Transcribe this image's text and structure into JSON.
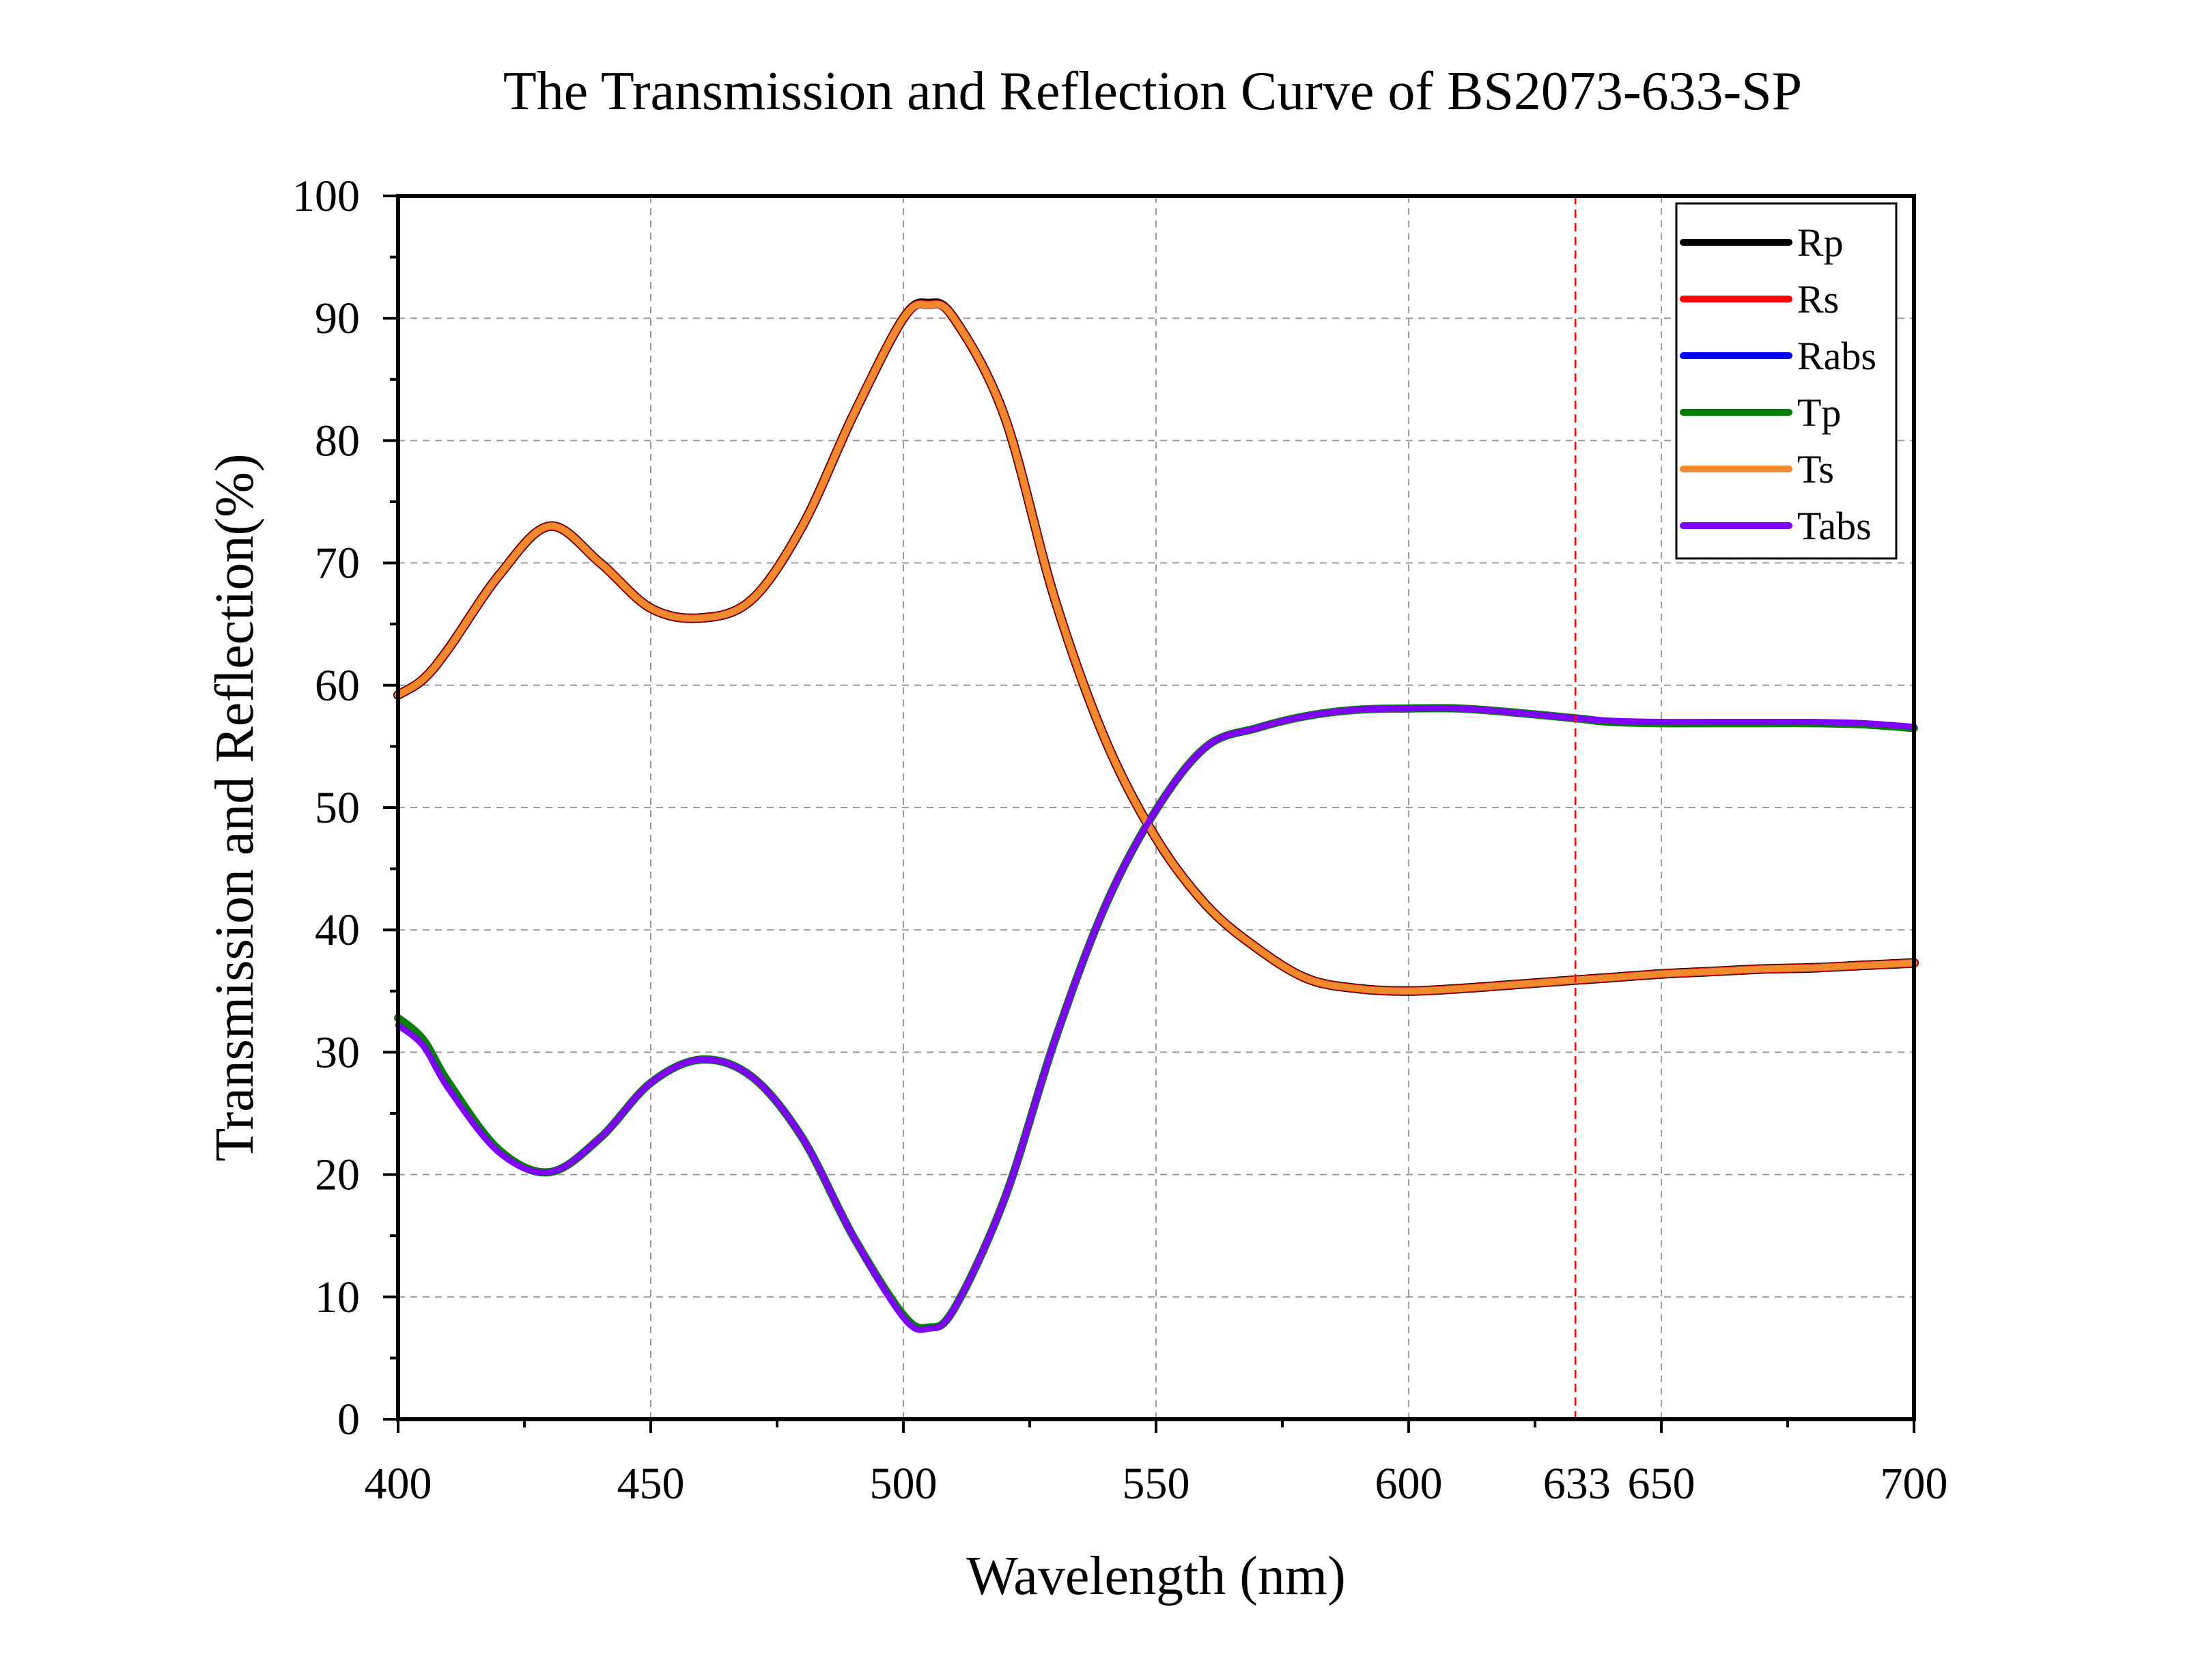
{
  "chart_data": {
    "type": "line",
    "title": "The Transmission and Reflection Curve of BS2073-633-SP",
    "xlabel": "Wavelength (nm)",
    "ylabel": "Transmission and Reflection(%)",
    "xlim": [
      400,
      700
    ],
    "ylim": [
      0,
      100
    ],
    "xticks": [
      400,
      450,
      500,
      550,
      600,
      650,
      700
    ],
    "yticks": [
      0,
      10,
      20,
      30,
      40,
      50,
      60,
      70,
      80,
      90,
      100
    ],
    "grid": true,
    "legend_position": "top-right",
    "marker": {
      "x": 633,
      "label": "633",
      "color": "#ff0000"
    },
    "series": [
      {
        "name": "Rp",
        "color": "#000000",
        "x": [
          400,
          405,
          410,
          420,
          430,
          440,
          450,
          460,
          470,
          480,
          490,
          500,
          505,
          510,
          520,
          530,
          540,
          550,
          560,
          570,
          580,
          590,
          600,
          610,
          620,
          633,
          640,
          650,
          660,
          670,
          680,
          690,
          700
        ],
        "y": [
          59.2,
          60.5,
          63,
          69,
          73,
          70,
          66.3,
          65.5,
          67,
          73,
          82,
          90,
          91.2,
          90,
          82,
          67,
          55.5,
          47.5,
          42,
          38.5,
          36,
          35.2,
          35,
          35.2,
          35.5,
          35.9,
          36.1,
          36.4,
          36.6,
          36.8,
          36.9,
          37.1,
          37.3
        ]
      },
      {
        "name": "Rs",
        "color": "#ff0000",
        "x": [
          400,
          405,
          410,
          420,
          430,
          440,
          450,
          460,
          470,
          480,
          490,
          500,
          505,
          510,
          520,
          530,
          540,
          550,
          560,
          570,
          580,
          590,
          600,
          610,
          620,
          633,
          640,
          650,
          660,
          670,
          680,
          690,
          700
        ],
        "y": [
          59.2,
          60.5,
          63,
          69,
          73,
          70,
          66.3,
          65.5,
          67,
          73,
          82,
          90,
          91.1,
          90,
          82,
          67,
          55.5,
          47.5,
          42,
          38.5,
          36,
          35.2,
          35,
          35.2,
          35.5,
          35.9,
          36.1,
          36.4,
          36.6,
          36.8,
          36.9,
          37.1,
          37.3
        ]
      },
      {
        "name": "Rabs",
        "color": "#0000ff",
        "x": [
          400,
          405,
          410,
          420,
          430,
          440,
          450,
          460,
          470,
          480,
          490,
          500,
          505,
          510,
          520,
          530,
          540,
          550,
          560,
          570,
          580,
          590,
          600,
          610,
          620,
          633,
          640,
          650,
          660,
          670,
          680,
          690,
          700
        ],
        "y": [
          59.2,
          60.5,
          63,
          69,
          73,
          70,
          66.3,
          65.5,
          67,
          73,
          82,
          90,
          91.1,
          90,
          82,
          67,
          55.5,
          47.5,
          42,
          38.5,
          36,
          35.2,
          35,
          35.2,
          35.5,
          35.9,
          36.1,
          36.4,
          36.6,
          36.8,
          36.9,
          37.1,
          37.3
        ]
      },
      {
        "name": "Tp",
        "color": "#008000",
        "x": [
          400,
          405,
          410,
          420,
          430,
          440,
          450,
          460,
          470,
          480,
          490,
          500,
          505,
          510,
          520,
          530,
          540,
          550,
          560,
          570,
          580,
          590,
          600,
          610,
          620,
          633,
          640,
          650,
          660,
          670,
          680,
          690,
          700
        ],
        "y": [
          32.8,
          31,
          27.5,
          22,
          20.2,
          23,
          27.5,
          29.4,
          28,
          23,
          15,
          8.5,
          7.5,
          9,
          18,
          31,
          42,
          49.8,
          55,
          56.5,
          57.5,
          58,
          58.1,
          58.1,
          57.8,
          57.3,
          57,
          56.9,
          56.9,
          56.9,
          56.9,
          56.8,
          56.5
        ]
      },
      {
        "name": "Ts",
        "color": "#f08a2c",
        "x": [
          400,
          405,
          410,
          420,
          430,
          440,
          450,
          460,
          470,
          480,
          490,
          500,
          505,
          510,
          520,
          530,
          540,
          550,
          560,
          570,
          580,
          590,
          600,
          610,
          620,
          633,
          640,
          650,
          660,
          670,
          680,
          690,
          700
        ],
        "y": [
          59.2,
          60.5,
          63,
          69,
          73,
          70,
          66.3,
          65.5,
          67,
          73,
          82,
          90,
          91.1,
          90,
          82,
          67,
          55.5,
          47.5,
          42,
          38.5,
          36,
          35.2,
          35,
          35.2,
          35.5,
          35.9,
          36.1,
          36.4,
          36.6,
          36.8,
          36.9,
          37.1,
          37.3
        ]
      },
      {
        "name": "Tabs",
        "color": "#8000ff",
        "x": [
          400,
          405,
          410,
          420,
          430,
          440,
          450,
          460,
          470,
          480,
          490,
          500,
          505,
          510,
          520,
          530,
          540,
          550,
          560,
          570,
          580,
          590,
          600,
          610,
          620,
          633,
          640,
          650,
          660,
          670,
          680,
          690,
          700
        ],
        "y": [
          32.2,
          30.5,
          27,
          21.8,
          20.2,
          23,
          27.5,
          29.4,
          28,
          23,
          15,
          8.3,
          7.4,
          9,
          18,
          31,
          42,
          49.8,
          55,
          56.5,
          57.5,
          58,
          58.1,
          58.1,
          57.8,
          57.3,
          57.1,
          57,
          57,
          57,
          57,
          56.9,
          56.6
        ]
      }
    ]
  }
}
